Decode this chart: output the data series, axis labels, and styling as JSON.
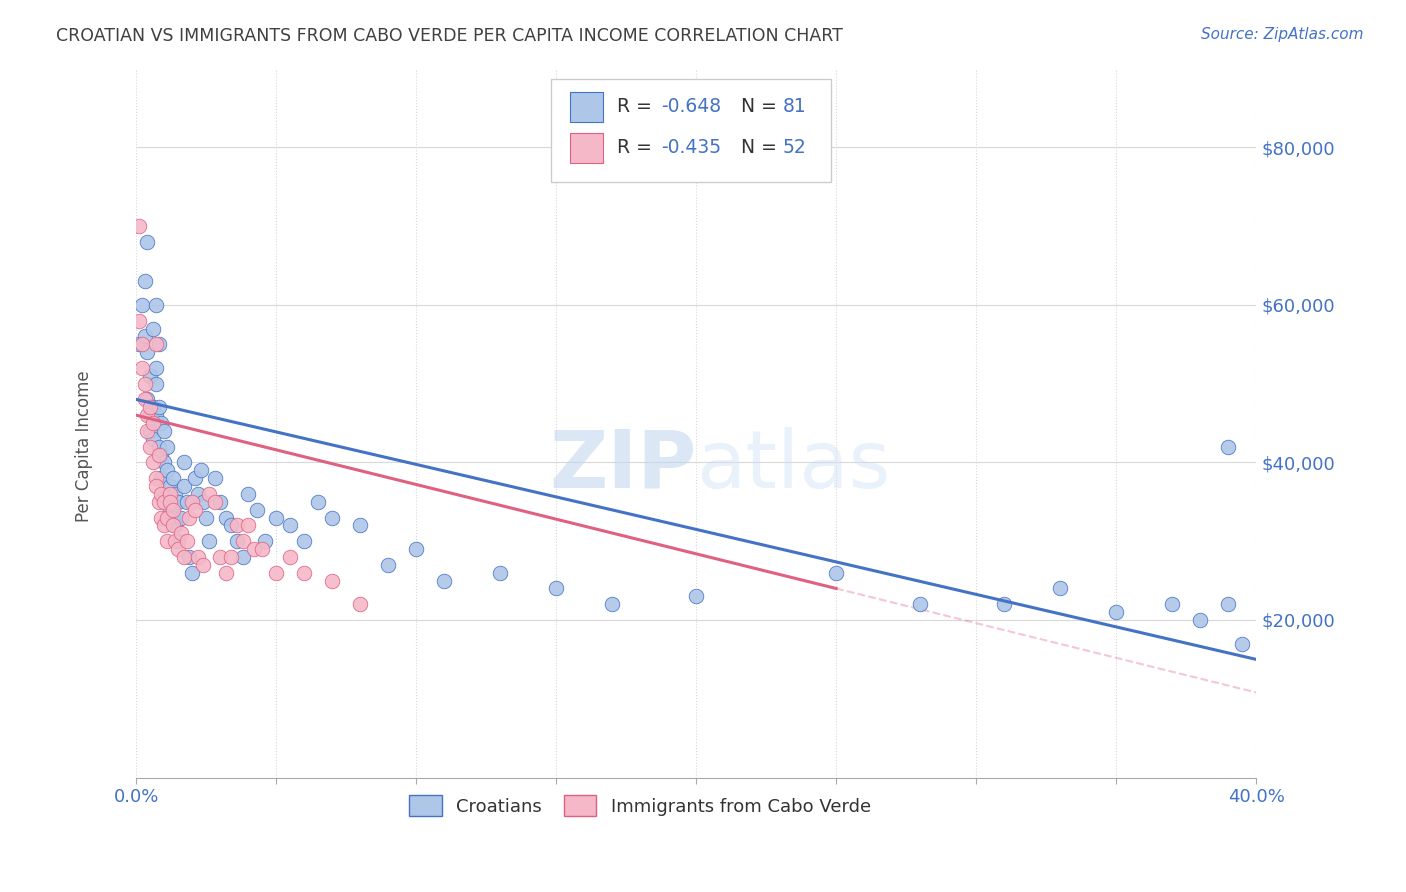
{
  "title": "CROATIAN VS IMMIGRANTS FROM CABO VERDE PER CAPITA INCOME CORRELATION CHART",
  "source": "Source: ZipAtlas.com",
  "ylabel": "Per Capita Income",
  "watermark": "ZIPatlas",
  "legend_croatians": "Croatians",
  "legend_caboverde": "Immigrants from Cabo Verde",
  "R_croatian": -0.648,
  "N_croatian": 81,
  "R_caboverde": -0.435,
  "N_caboverde": 52,
  "ytick_labels": [
    "$20,000",
    "$40,000",
    "$60,000",
    "$80,000"
  ],
  "ytick_values": [
    20000,
    40000,
    60000,
    80000
  ],
  "color_croatian": "#aec6e8",
  "color_caboverde": "#f4b8c8",
  "color_line_croatian": "#4472c4",
  "color_line_caboverde": "#e06080",
  "color_title": "#404040",
  "color_source": "#4472c4",
  "color_yticks": "#4472c4",
  "color_xticks": "#4472c4",
  "bg_color": "#ffffff",
  "xlim": [
    0.0,
    0.4
  ],
  "ylim": [
    0,
    90000
  ],
  "blue_dots_x": [
    0.001,
    0.002,
    0.003,
    0.003,
    0.004,
    0.004,
    0.004,
    0.005,
    0.005,
    0.005,
    0.006,
    0.006,
    0.006,
    0.007,
    0.007,
    0.007,
    0.007,
    0.008,
    0.008,
    0.008,
    0.009,
    0.009,
    0.009,
    0.01,
    0.01,
    0.01,
    0.011,
    0.011,
    0.012,
    0.012,
    0.012,
    0.013,
    0.013,
    0.014,
    0.014,
    0.015,
    0.015,
    0.016,
    0.017,
    0.017,
    0.018,
    0.019,
    0.02,
    0.021,
    0.022,
    0.023,
    0.024,
    0.025,
    0.026,
    0.028,
    0.03,
    0.032,
    0.034,
    0.036,
    0.038,
    0.04,
    0.043,
    0.046,
    0.05,
    0.055,
    0.06,
    0.065,
    0.07,
    0.08,
    0.09,
    0.1,
    0.11,
    0.13,
    0.15,
    0.17,
    0.2,
    0.25,
    0.28,
    0.31,
    0.33,
    0.35,
    0.37,
    0.38,
    0.39,
    0.39,
    0.395
  ],
  "blue_dots_y": [
    55000,
    60000,
    56000,
    63000,
    68000,
    54000,
    48000,
    46000,
    51000,
    44000,
    47000,
    43000,
    57000,
    52000,
    50000,
    46000,
    60000,
    42000,
    55000,
    47000,
    41000,
    45000,
    38000,
    44000,
    40000,
    36000,
    39000,
    42000,
    35000,
    37000,
    34000,
    38000,
    33000,
    36000,
    32000,
    35000,
    30000,
    33000,
    40000,
    37000,
    35000,
    28000,
    26000,
    38000,
    36000,
    39000,
    35000,
    33000,
    30000,
    38000,
    35000,
    33000,
    32000,
    30000,
    28000,
    36000,
    34000,
    30000,
    33000,
    32000,
    30000,
    35000,
    33000,
    32000,
    27000,
    29000,
    25000,
    26000,
    24000,
    22000,
    23000,
    26000,
    22000,
    22000,
    24000,
    21000,
    22000,
    20000,
    42000,
    22000,
    17000
  ],
  "pink_dots_x": [
    0.001,
    0.002,
    0.002,
    0.003,
    0.003,
    0.004,
    0.004,
    0.005,
    0.005,
    0.006,
    0.006,
    0.007,
    0.007,
    0.007,
    0.008,
    0.008,
    0.009,
    0.009,
    0.01,
    0.01,
    0.011,
    0.011,
    0.012,
    0.012,
    0.013,
    0.013,
    0.014,
    0.015,
    0.016,
    0.017,
    0.018,
    0.019,
    0.02,
    0.021,
    0.022,
    0.024,
    0.026,
    0.028,
    0.03,
    0.032,
    0.034,
    0.036,
    0.038,
    0.04,
    0.042,
    0.045,
    0.05,
    0.055,
    0.06,
    0.07,
    0.001,
    0.08
  ],
  "pink_dots_y": [
    70000,
    55000,
    52000,
    48000,
    50000,
    46000,
    44000,
    47000,
    42000,
    40000,
    45000,
    38000,
    37000,
    55000,
    41000,
    35000,
    36000,
    33000,
    32000,
    35000,
    30000,
    33000,
    36000,
    35000,
    34000,
    32000,
    30000,
    29000,
    31000,
    28000,
    30000,
    33000,
    35000,
    34000,
    28000,
    27000,
    36000,
    35000,
    28000,
    26000,
    28000,
    32000,
    30000,
    32000,
    29000,
    29000,
    26000,
    28000,
    26000,
    25000,
    58000,
    22000
  ],
  "blue_line_x": [
    0.0,
    0.4
  ],
  "blue_line_y": [
    48000,
    15000
  ],
  "pink_line_x": [
    0.0,
    0.25
  ],
  "pink_line_y": [
    46000,
    24000
  ],
  "dashed_line_x": [
    0.25,
    0.5
  ],
  "dashed_line_y": [
    24000,
    2000
  ]
}
